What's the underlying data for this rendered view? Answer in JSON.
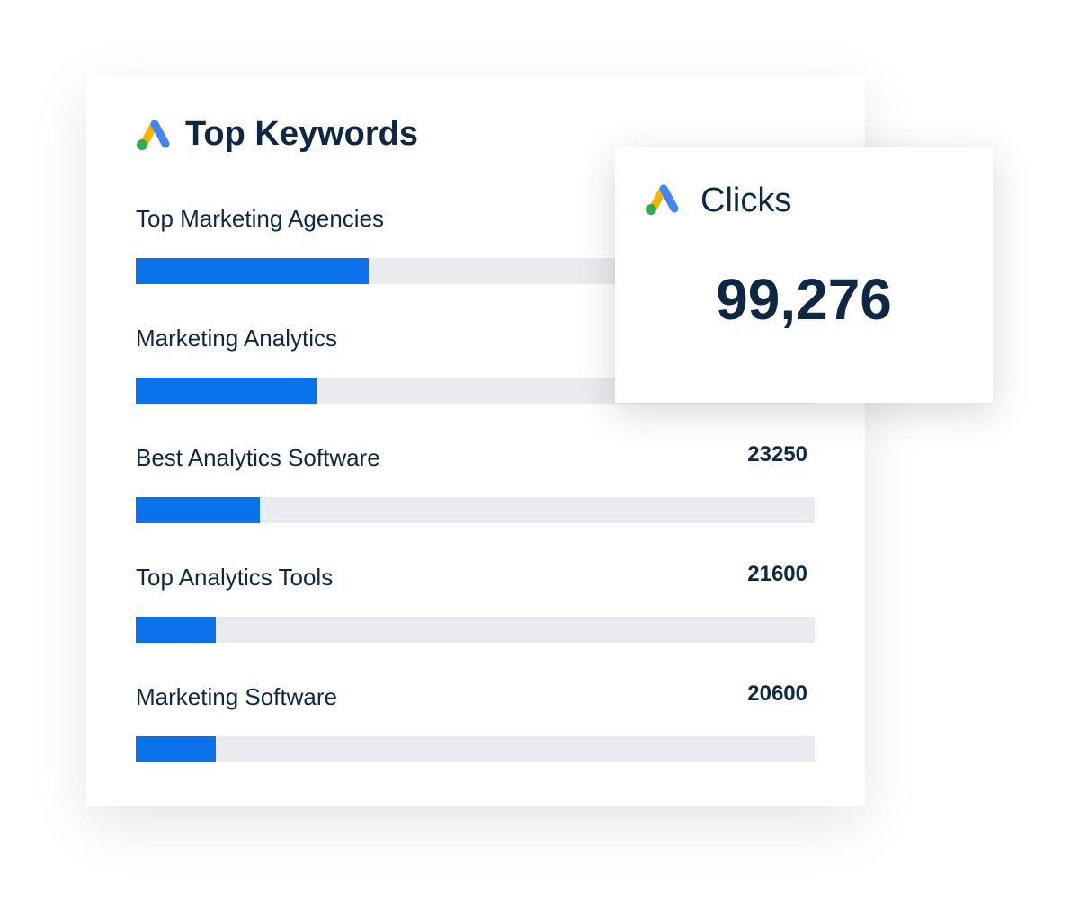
{
  "header": {
    "title": "Top Keywords"
  },
  "keywords": [
    {
      "label": "Top Marketing Agencies"
    },
    {
      "label": "Marketing Analytics"
    },
    {
      "label": "Best Analytics Software",
      "value": 23250
    },
    {
      "label": "Top Analytics Tools",
      "value": 21600
    },
    {
      "label": "Marketing Software",
      "value": 20600
    }
  ],
  "clicks_card": {
    "title": "Clicks",
    "value": "99,276"
  }
}
